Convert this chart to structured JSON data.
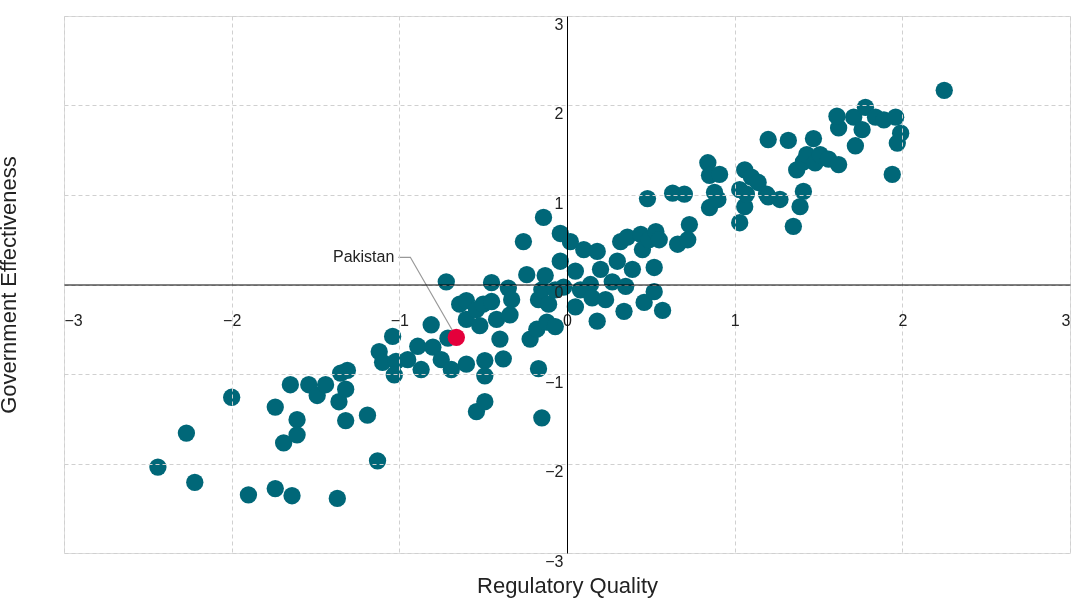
{
  "chart_data": {
    "type": "scatter",
    "xlabel": "Regulatory Quality",
    "ylabel": "Government Effectiveness",
    "xlim": [
      -3,
      3
    ],
    "ylim": [
      -3,
      3
    ],
    "xticks": [
      -3,
      -2,
      -1,
      0,
      1,
      2,
      3
    ],
    "yticks": [
      -3,
      -2,
      -1,
      0,
      1,
      2,
      3
    ],
    "grid": true,
    "legend": false,
    "marker": "circle",
    "series": [
      {
        "color": "#006778",
        "x": [
          -2.44,
          -2.27,
          -2.22,
          -2.0,
          -1.9,
          -1.74,
          -1.74,
          -1.64,
          -1.69,
          -1.61,
          -1.61,
          -1.65,
          -1.54,
          -1.49,
          -1.44,
          -1.37,
          -1.35,
          -1.31,
          -1.36,
          -1.32,
          -1.32,
          -1.19,
          -1.13,
          -1.12,
          -1.1,
          -1.04,
          -1.02,
          -1.03,
          -0.95,
          -0.89,
          -0.87,
          -0.81,
          -0.8,
          -0.72,
          -0.75,
          -0.71,
          -0.69,
          -0.64,
          -0.6,
          -0.6,
          -0.6,
          -0.54,
          -0.52,
          -0.49,
          -0.49,
          -0.5,
          -0.54,
          -0.49,
          -0.45,
          -0.45,
          -0.42,
          -0.4,
          -0.38,
          -0.35,
          -0.34,
          -0.33,
          -0.26,
          -0.24,
          -0.22,
          -0.18,
          -0.17,
          -0.17,
          -0.15,
          -0.15,
          -0.14,
          -0.13,
          -0.12,
          -0.11,
          -0.07,
          -0.07,
          -0.04,
          -0.04,
          -0.02,
          0.02,
          0.05,
          0.05,
          0.08,
          0.1,
          0.14,
          0.15,
          0.18,
          0.18,
          0.2,
          0.23,
          0.27,
          0.3,
          0.32,
          0.34,
          0.35,
          0.36,
          0.39,
          0.44,
          0.45,
          0.46,
          0.48,
          0.49,
          0.52,
          0.52,
          0.53,
          0.55,
          0.57,
          0.63,
          0.66,
          0.7,
          0.73,
          0.72,
          0.84,
          0.85,
          0.85,
          0.88,
          0.9,
          0.91,
          1.03,
          1.03,
          1.06,
          1.06,
          1.07,
          1.1,
          1.14,
          1.19,
          1.2,
          1.2,
          1.27,
          1.32,
          1.35,
          1.37,
          1.41,
          1.39,
          1.41,
          1.43,
          1.47,
          1.48,
          1.51,
          1.56,
          1.62,
          1.62,
          1.61,
          1.71,
          1.72,
          1.76,
          1.78,
          1.84,
          1.89,
          1.96,
          1.99,
          1.97,
          1.94,
          2.25
        ],
        "values": [
          -2.04,
          -1.66,
          -2.21,
          -1.26,
          -2.35,
          -1.37,
          -2.28,
          -2.36,
          -1.77,
          -1.51,
          -1.68,
          -1.12,
          -1.12,
          -1.24,
          -1.12,
          -2.39,
          -0.99,
          -0.96,
          -1.31,
          -1.17,
          -1.52,
          -1.46,
          -1.97,
          -0.75,
          -0.87,
          -0.58,
          -0.86,
          -1.01,
          -0.84,
          -0.69,
          -0.95,
          -0.45,
          -0.7,
          0.03,
          -0.84,
          -0.6,
          -0.95,
          -0.22,
          -0.18,
          -0.39,
          -0.89,
          -0.28,
          -0.46,
          -0.85,
          -1.02,
          -0.22,
          -1.42,
          -1.31,
          -0.19,
          0.02,
          -0.39,
          -0.61,
          -0.83,
          -0.04,
          -0.34,
          -0.17,
          0.48,
          0.11,
          -0.61,
          -0.5,
          -0.17,
          -0.94,
          -1.49,
          -0.06,
          0.75,
          0.1,
          -0.42,
          -0.22,
          -0.47,
          -0.06,
          0.57,
          0.26,
          -0.03,
          0.48,
          0.15,
          -0.25,
          -0.06,
          0.39,
          0.0,
          -0.15,
          -0.41,
          0.37,
          0.17,
          -0.17,
          0.03,
          0.26,
          0.48,
          -0.3,
          -0.02,
          0.53,
          0.17,
          0.56,
          0.39,
          -0.2,
          0.96,
          0.5,
          -0.08,
          0.19,
          0.59,
          0.5,
          -0.29,
          1.02,
          0.45,
          1.01,
          0.67,
          0.5,
          1.36,
          1.22,
          0.86,
          1.03,
          0.95,
          1.23,
          0.69,
          1.06,
          1.28,
          0.87,
          1.01,
          1.2,
          1.14,
          1.01,
          1.62,
          0.98,
          0.95,
          1.61,
          0.65,
          1.28,
          1.37,
          0.87,
          1.04,
          1.45,
          1.63,
          1.36,
          1.45,
          1.4,
          1.34,
          1.75,
          1.88,
          1.87,
          1.55,
          1.73,
          1.98,
          1.87,
          1.84,
          1.87,
          1.69,
          1.58,
          1.23,
          2.17
        ]
      },
      {
        "name": "Pakistan",
        "color": "#e4003b",
        "x": [
          -0.66
        ],
        "values": [
          -0.59
        ]
      }
    ]
  }
}
